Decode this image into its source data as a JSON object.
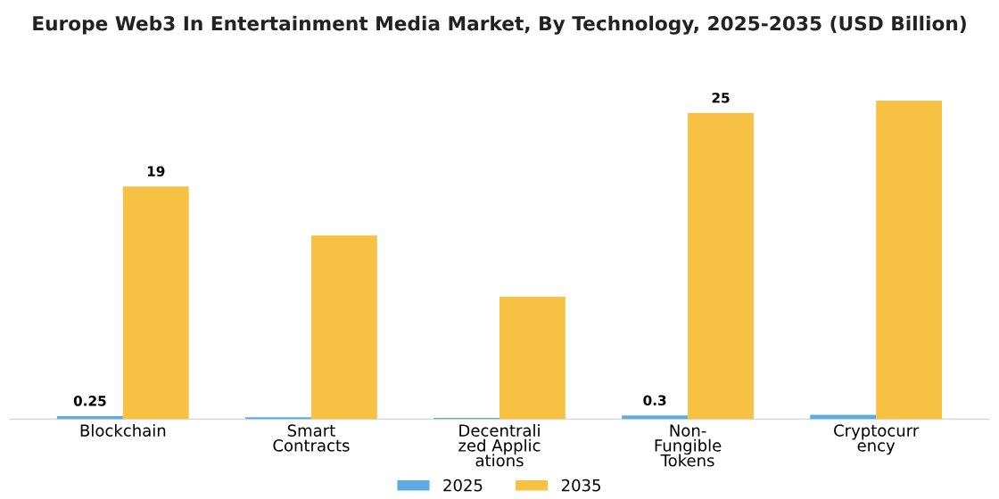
{
  "chart_data": {
    "type": "bar",
    "title": "Europe Web3 In Entertainment Media Market, By Technology, 2025-2035 (USD Billion)",
    "categories": [
      "Blockchain",
      "Smart\nContracts",
      "Decentrali\nzed Applic\nations",
      "Non-\nFungible\nTokens",
      "Cryptocurr\nency"
    ],
    "series": [
      {
        "name": "2025",
        "color": "#5dade2",
        "values": [
          0.25,
          0.15,
          0.1,
          0.3,
          0.35
        ],
        "value_labels": [
          "0.25",
          null,
          null,
          "0.3",
          null
        ]
      },
      {
        "name": "2035",
        "color": "#f7c244",
        "values": [
          19,
          15,
          10,
          25,
          26
        ],
        "value_labels": [
          "19",
          null,
          null,
          "25",
          null
        ]
      }
    ],
    "legend": "bottom",
    "grid": false
  }
}
